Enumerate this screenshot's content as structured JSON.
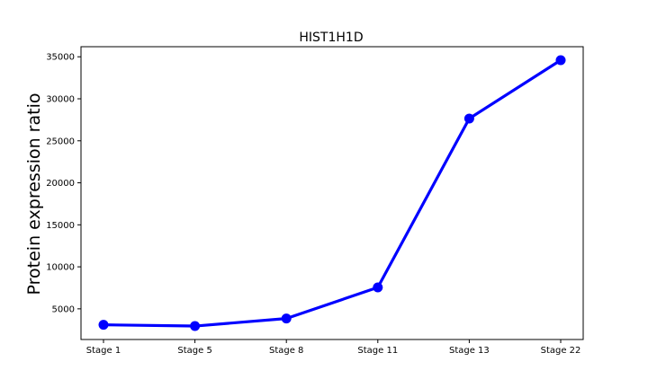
{
  "chart_data": {
    "type": "line",
    "title": "HIST1H1D",
    "xlabel": "",
    "ylabel": "Protein expression ratio",
    "categories": [
      "Stage 1",
      "Stage 5",
      "Stage 8",
      "Stage 11",
      "Stage 13",
      "Stage 22"
    ],
    "series": [
      {
        "values": [
          3100,
          2950,
          3850,
          7550,
          27650,
          34600
        ]
      }
    ],
    "ylim": [
      1350,
      36200
    ],
    "yticks": [
      5000,
      10000,
      15000,
      20000,
      25000,
      30000,
      35000
    ],
    "grid": false,
    "line_color": "#0000ff",
    "marker_color": "#0000ff"
  }
}
